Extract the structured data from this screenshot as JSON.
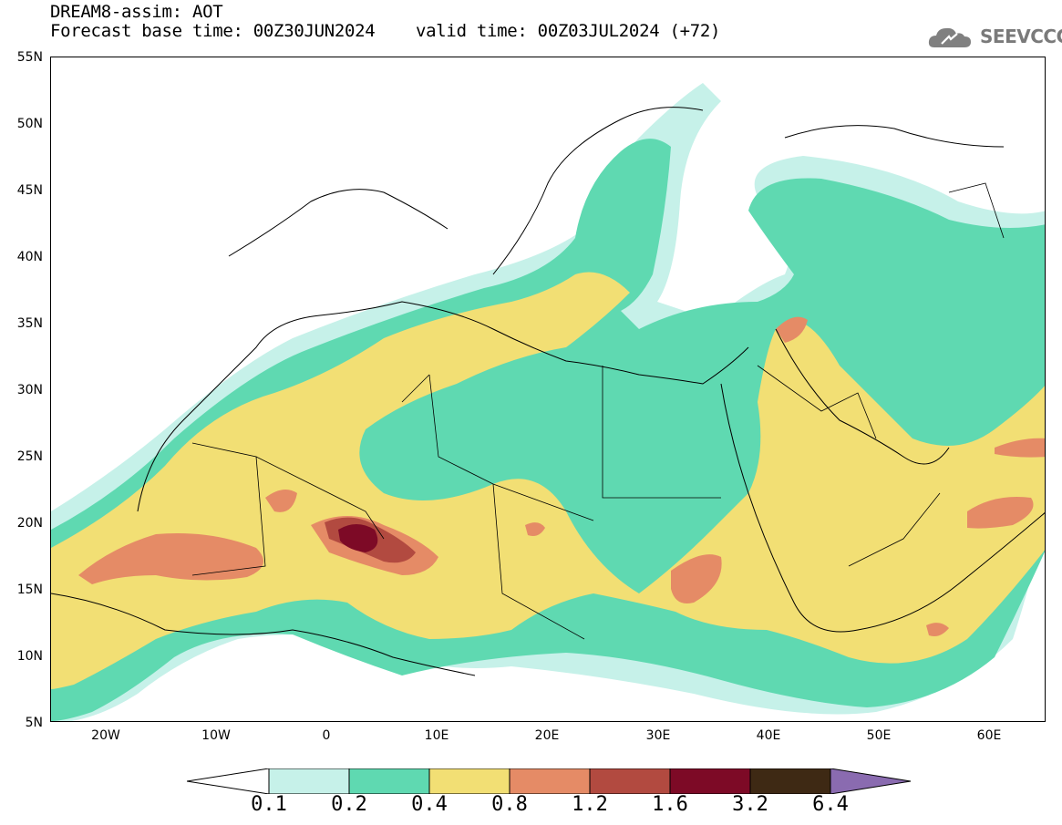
{
  "header": {
    "title": "DREAM8-assim: AOT",
    "base_time": "Forecast base time: 00Z30JUN2024",
    "valid_time": "valid time: 00Z03JUL2024 (+72)"
  },
  "logo": {
    "text": "SEEVCCC",
    "icon": "cloud-icon"
  },
  "axes": {
    "lat_labels": [
      "55N",
      "50N",
      "45N",
      "40N",
      "35N",
      "30N",
      "25N",
      "20N",
      "15N",
      "10N",
      "5N"
    ],
    "lon_labels": [
      "20W",
      "10W",
      "0",
      "10E",
      "20E",
      "30E",
      "40E",
      "50E",
      "60E"
    ]
  },
  "colorbar": {
    "labels": [
      "0.1",
      "0.2",
      "0.4",
      "0.8",
      "1.2",
      "1.6",
      "3.2",
      "6.4"
    ],
    "colors": [
      "#c6f1e9",
      "#5fd9b1",
      "#f2df74",
      "#e58b66",
      "#b24a40",
      "#7d0a26",
      "#3e2914",
      "#8a6bb0"
    ]
  },
  "colors": {
    "c1": "#c6f1e9",
    "c2": "#5fd9b1",
    "c3": "#f2df74",
    "c4": "#e58b66",
    "c5": "#b24a40",
    "c6": "#7d0a26",
    "c7": "#3e2914",
    "c8": "#8a6bb0"
  }
}
